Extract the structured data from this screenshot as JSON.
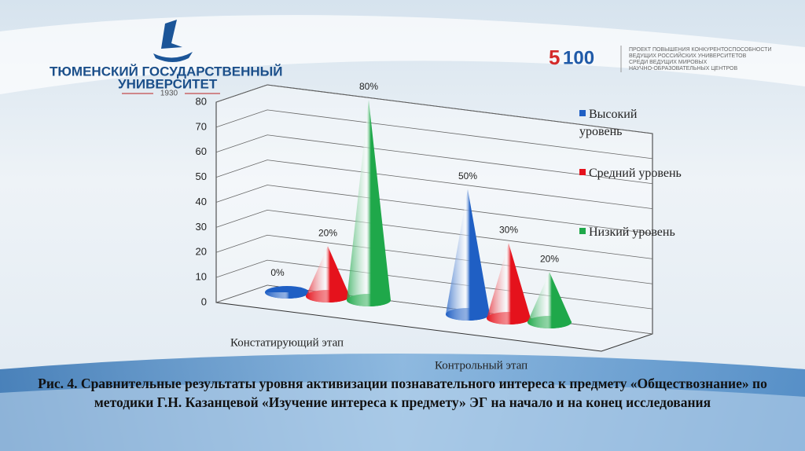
{
  "header": {
    "university": [
      "ТЮМЕНСКИЙ ГОСУДАРСТВЕННЫЙ",
      "УНИВЕРСИТЕТ"
    ],
    "year": "1930",
    "logo_5": "5",
    "logo_100": "100",
    "project": [
      "ПРОЕКТ ПОВЫШЕНИЯ КОНКУРЕНТОСПОСОБНОСТИ",
      "ВЕДУЩИХ РОССИЙСКИХ УНИВЕРСИТЕТОВ",
      "СРЕДИ ВЕДУЩИХ МИРОВЫХ",
      "НАУЧНО-ОБРАЗОВАТЕЛЬНЫХ ЦЕНТРОВ"
    ]
  },
  "chart_data": {
    "type": "cone",
    "categories": [
      "Констатирующий этап",
      "Контрольный этап"
    ],
    "series": [
      {
        "name": "Высокий уровень",
        "color": "#1f5fc4",
        "values": [
          0,
          50
        ],
        "value_labels": [
          "0%",
          "50%"
        ]
      },
      {
        "name": "Средний уровень",
        "color": "#e5121c",
        "values": [
          20,
          30
        ],
        "value_labels": [
          "20%",
          "30%"
        ]
      },
      {
        "name": "Низкий уровень",
        "color": "#1fa84a",
        "values": [
          80,
          20
        ],
        "value_labels": [
          "80%",
          "20%"
        ]
      }
    ],
    "ylim": [
      0,
      80
    ],
    "yticks": [
      0,
      10,
      20,
      30,
      40,
      50,
      60,
      70,
      80
    ],
    "grid": true,
    "legend": "right"
  },
  "caption": "Рис. 4. Сравнительные результаты уровня активизации познавательного интереса к предмету «Обществознание» по методики Г.Н. Казанцевой «Изучение интереса к предмету» ЭГ на начало и на конец исследования"
}
